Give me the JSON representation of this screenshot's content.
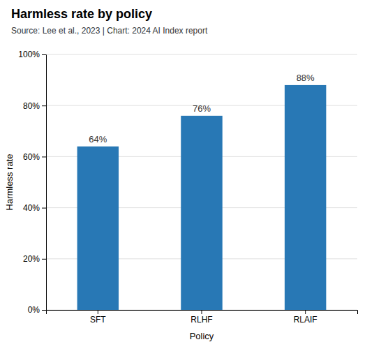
{
  "chart_data": {
    "type": "bar",
    "title": "Harmless rate by policy",
    "subtitle": "Source: Lee et al., 2023 | Chart: 2024 AI Index report",
    "xlabel": "Policy",
    "ylabel": "Harmless rate",
    "categories": [
      "SFT",
      "RLHF",
      "RLAIF"
    ],
    "values": [
      64,
      76,
      88
    ],
    "value_labels": [
      "64%",
      "76%",
      "88%"
    ],
    "data_labels": true,
    "color": "#2878b5",
    "ylim": [
      0,
      100
    ],
    "yticks": [
      {
        "value": 0,
        "label": "0%"
      },
      {
        "value": 20,
        "label": "20%"
      },
      {
        "value": 40,
        "label": "40%"
      },
      {
        "value": 60,
        "label": "60%"
      },
      {
        "value": 80,
        "label": "80%"
      },
      {
        "value": 100,
        "label": "100%"
      }
    ],
    "grid": true
  }
}
